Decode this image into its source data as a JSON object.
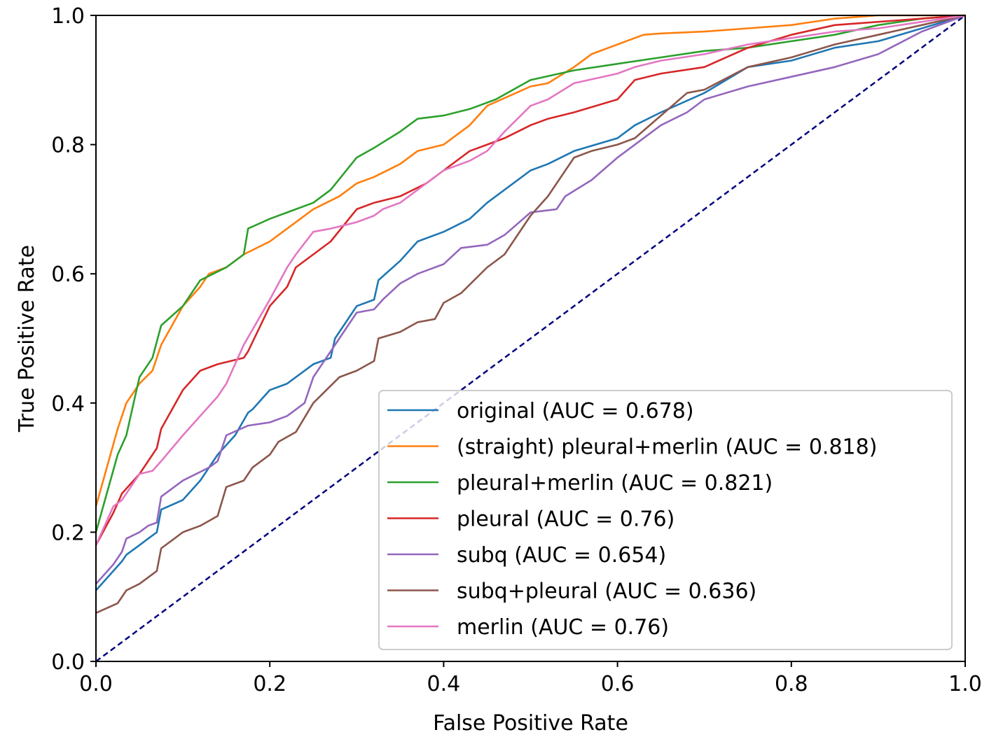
{
  "chart_data": {
    "type": "line",
    "title": "",
    "xlabel": "False Positive Rate",
    "ylabel": "True Positive Rate",
    "xlim": [
      0.0,
      1.0
    ],
    "ylim": [
      0.0,
      1.0
    ],
    "xticks": [
      "0.0",
      "0.2",
      "0.4",
      "0.6",
      "0.8",
      "1.0"
    ],
    "yticks": [
      "0.0",
      "0.2",
      "0.4",
      "0.6",
      "0.8",
      "1.0"
    ],
    "grid": false,
    "legend_position": "lower-right",
    "reference_line": {
      "name": "chance",
      "color": "#000080",
      "style": "dashed",
      "x": [
        0,
        1
      ],
      "y": [
        0,
        1
      ]
    },
    "series": [
      {
        "name": "original (AUC = 0.678)",
        "color": "#1f77b4",
        "x": [
          0,
          0.02,
          0.03,
          0.035,
          0.05,
          0.06,
          0.07,
          0.075,
          0.1,
          0.12,
          0.13,
          0.14,
          0.16,
          0.175,
          0.18,
          0.2,
          0.22,
          0.25,
          0.27,
          0.275,
          0.3,
          0.32,
          0.325,
          0.35,
          0.37,
          0.4,
          0.43,
          0.45,
          0.5,
          0.52,
          0.55,
          0.6,
          0.62,
          0.65,
          0.7,
          0.75,
          0.8,
          0.85,
          0.9,
          0.95,
          1.0
        ],
        "y": [
          0.11,
          0.14,
          0.155,
          0.165,
          0.18,
          0.19,
          0.2,
          0.235,
          0.25,
          0.28,
          0.3,
          0.32,
          0.35,
          0.385,
          0.39,
          0.42,
          0.43,
          0.46,
          0.47,
          0.5,
          0.55,
          0.56,
          0.59,
          0.62,
          0.65,
          0.665,
          0.685,
          0.71,
          0.76,
          0.77,
          0.79,
          0.81,
          0.83,
          0.85,
          0.88,
          0.92,
          0.93,
          0.95,
          0.96,
          0.98,
          1.0
        ]
      },
      {
        "name": "(straight) pleural+merlin (AUC = 0.818)",
        "color": "#ff7f0e",
        "x": [
          0,
          0.025,
          0.035,
          0.045,
          0.05,
          0.065,
          0.075,
          0.1,
          0.12,
          0.13,
          0.15,
          0.17,
          0.2,
          0.22,
          0.25,
          0.28,
          0.3,
          0.32,
          0.35,
          0.37,
          0.4,
          0.43,
          0.45,
          0.5,
          0.52,
          0.55,
          0.57,
          0.6,
          0.63,
          0.65,
          0.7,
          0.75,
          0.8,
          0.85,
          0.9,
          0.95,
          1.0
        ],
        "y": [
          0.24,
          0.36,
          0.4,
          0.42,
          0.43,
          0.45,
          0.49,
          0.55,
          0.58,
          0.6,
          0.61,
          0.63,
          0.65,
          0.67,
          0.7,
          0.72,
          0.74,
          0.75,
          0.77,
          0.79,
          0.8,
          0.83,
          0.86,
          0.89,
          0.895,
          0.92,
          0.94,
          0.955,
          0.97,
          0.972,
          0.975,
          0.98,
          0.985,
          0.995,
          1.0,
          1.0,
          1.0
        ]
      },
      {
        "name": "pleural+merlin (AUC = 0.821)",
        "color": "#2ca02c",
        "x": [
          0,
          0.025,
          0.035,
          0.045,
          0.05,
          0.065,
          0.075,
          0.1,
          0.12,
          0.135,
          0.15,
          0.17,
          0.175,
          0.2,
          0.22,
          0.25,
          0.27,
          0.3,
          0.32,
          0.35,
          0.37,
          0.4,
          0.43,
          0.46,
          0.5,
          0.55,
          0.6,
          0.65,
          0.7,
          0.75,
          0.8,
          0.85,
          0.9,
          0.95,
          1.0
        ],
        "y": [
          0.2,
          0.32,
          0.35,
          0.41,
          0.44,
          0.47,
          0.52,
          0.55,
          0.59,
          0.6,
          0.61,
          0.63,
          0.67,
          0.685,
          0.695,
          0.71,
          0.73,
          0.78,
          0.795,
          0.82,
          0.84,
          0.845,
          0.855,
          0.87,
          0.9,
          0.915,
          0.925,
          0.935,
          0.945,
          0.95,
          0.96,
          0.97,
          0.985,
          0.995,
          1.0
        ]
      },
      {
        "name": "pleural (AUC = 0.76)",
        "color": "#d62728",
        "x": [
          0,
          0.02,
          0.03,
          0.05,
          0.06,
          0.07,
          0.075,
          0.1,
          0.12,
          0.14,
          0.17,
          0.175,
          0.2,
          0.22,
          0.23,
          0.25,
          0.27,
          0.3,
          0.32,
          0.35,
          0.38,
          0.4,
          0.43,
          0.45,
          0.47,
          0.5,
          0.52,
          0.55,
          0.6,
          0.62,
          0.65,
          0.7,
          0.75,
          0.8,
          0.85,
          0.9,
          0.95,
          1.0
        ],
        "y": [
          0.18,
          0.23,
          0.26,
          0.29,
          0.31,
          0.33,
          0.36,
          0.42,
          0.45,
          0.46,
          0.47,
          0.48,
          0.55,
          0.58,
          0.61,
          0.63,
          0.65,
          0.7,
          0.71,
          0.72,
          0.74,
          0.76,
          0.79,
          0.8,
          0.81,
          0.83,
          0.84,
          0.85,
          0.87,
          0.9,
          0.91,
          0.92,
          0.95,
          0.97,
          0.985,
          0.99,
          0.995,
          1.0
        ]
      },
      {
        "name": "subq (AUC = 0.654)",
        "color": "#9467bd",
        "x": [
          0,
          0.02,
          0.03,
          0.035,
          0.05,
          0.06,
          0.07,
          0.075,
          0.1,
          0.13,
          0.14,
          0.15,
          0.175,
          0.2,
          0.22,
          0.24,
          0.25,
          0.28,
          0.3,
          0.32,
          0.33,
          0.35,
          0.37,
          0.4,
          0.42,
          0.45,
          0.47,
          0.5,
          0.53,
          0.54,
          0.57,
          0.6,
          0.63,
          0.65,
          0.68,
          0.7,
          0.75,
          0.8,
          0.85,
          0.9,
          0.95,
          1.0
        ],
        "y": [
          0.12,
          0.15,
          0.17,
          0.19,
          0.2,
          0.21,
          0.215,
          0.255,
          0.28,
          0.3,
          0.31,
          0.35,
          0.365,
          0.37,
          0.38,
          0.4,
          0.44,
          0.5,
          0.54,
          0.545,
          0.56,
          0.585,
          0.6,
          0.615,
          0.64,
          0.645,
          0.66,
          0.695,
          0.7,
          0.72,
          0.745,
          0.78,
          0.81,
          0.83,
          0.85,
          0.87,
          0.89,
          0.905,
          0.92,
          0.94,
          0.975,
          1.0
        ]
      },
      {
        "name": "subq+pleural (AUC = 0.636)",
        "color": "#8c564b",
        "x": [
          0,
          0.025,
          0.035,
          0.05,
          0.07,
          0.075,
          0.1,
          0.12,
          0.14,
          0.15,
          0.17,
          0.18,
          0.2,
          0.21,
          0.23,
          0.25,
          0.28,
          0.3,
          0.32,
          0.325,
          0.35,
          0.37,
          0.39,
          0.4,
          0.42,
          0.45,
          0.47,
          0.5,
          0.52,
          0.53,
          0.55,
          0.57,
          0.6,
          0.62,
          0.65,
          0.68,
          0.7,
          0.75,
          0.8,
          0.85,
          0.9,
          0.95,
          1.0
        ],
        "y": [
          0.075,
          0.09,
          0.11,
          0.12,
          0.14,
          0.175,
          0.2,
          0.21,
          0.225,
          0.27,
          0.28,
          0.3,
          0.32,
          0.34,
          0.355,
          0.4,
          0.44,
          0.45,
          0.465,
          0.5,
          0.51,
          0.525,
          0.53,
          0.555,
          0.57,
          0.61,
          0.63,
          0.69,
          0.72,
          0.74,
          0.78,
          0.79,
          0.8,
          0.81,
          0.845,
          0.88,
          0.885,
          0.92,
          0.935,
          0.955,
          0.97,
          0.985,
          1.0
        ]
      },
      {
        "name": "merlin (AUC = 0.76)",
        "color": "#e377c2",
        "x": [
          0,
          0.02,
          0.03,
          0.05,
          0.065,
          0.075,
          0.1,
          0.12,
          0.14,
          0.15,
          0.17,
          0.2,
          0.22,
          0.23,
          0.25,
          0.27,
          0.3,
          0.32,
          0.33,
          0.35,
          0.38,
          0.4,
          0.43,
          0.45,
          0.47,
          0.5,
          0.52,
          0.55,
          0.6,
          0.62,
          0.65,
          0.7,
          0.75,
          0.8,
          0.85,
          0.9,
          0.95,
          1.0
        ],
        "y": [
          0.18,
          0.24,
          0.25,
          0.29,
          0.295,
          0.31,
          0.35,
          0.38,
          0.41,
          0.43,
          0.49,
          0.56,
          0.61,
          0.63,
          0.665,
          0.67,
          0.68,
          0.69,
          0.7,
          0.71,
          0.74,
          0.76,
          0.775,
          0.79,
          0.82,
          0.86,
          0.87,
          0.895,
          0.91,
          0.92,
          0.93,
          0.94,
          0.955,
          0.965,
          0.975,
          0.98,
          0.99,
          1.0
        ]
      }
    ]
  }
}
